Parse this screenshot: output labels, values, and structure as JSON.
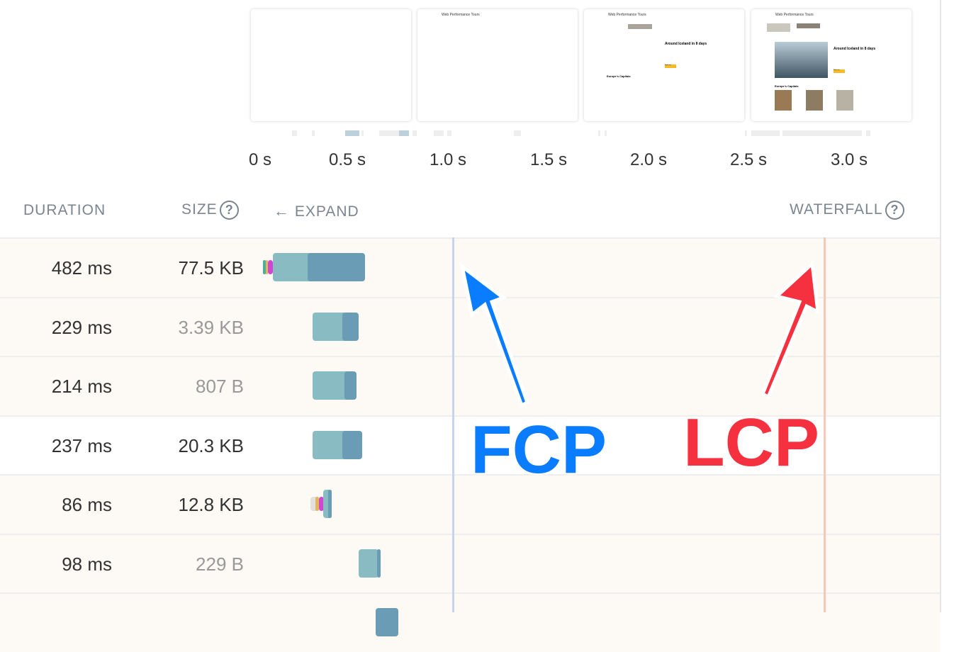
{
  "filmstrip": {
    "frames": [
      {
        "label": ""
      },
      {
        "label": "Web Performance Tours"
      },
      {
        "label": "Web Performance Tours",
        "heading": "Around Iceland in 8 days",
        "section": "Europe's Capitals",
        "button": "Book now"
      },
      {
        "label": "Web Performance Tours",
        "heading": "Around Iceland in 8 days",
        "section": "Europe's Capitals",
        "button": "Book now"
      }
    ]
  },
  "timeline": {
    "ticks": [
      "0 s",
      "0.5 s",
      "1.0 s",
      "1.5 s",
      "2.0 s",
      "2.5 s",
      "3.0 s"
    ]
  },
  "header": {
    "duration": "DURATION",
    "size": "SIZE",
    "help": "?",
    "expand": "EXPAND",
    "waterfall": "WATERFALL"
  },
  "rows": [
    {
      "duration": "482 ms",
      "size": "77.5 KB",
      "dim": false
    },
    {
      "duration": "229 ms",
      "size": "3.39 KB",
      "dim": true
    },
    {
      "duration": "214 ms",
      "size": "807 B",
      "dim": true
    },
    {
      "duration": "237 ms",
      "size": "20.3 KB",
      "dim": false
    },
    {
      "duration": "86 ms",
      "size": "12.8 KB",
      "dim": false
    },
    {
      "duration": "98 ms",
      "size": "229 B",
      "dim": true
    }
  ],
  "annotations": {
    "fcp": "FCP",
    "lcp": "LCP",
    "fcp_color": "#0a7cff",
    "lcp_color": "#f5303f"
  },
  "colors": {
    "wait": "#88bcc2",
    "download": "#6a9cb5",
    "ssl": "#d146d1",
    "connect": "#e6b45a",
    "dns": "#46b09c"
  }
}
